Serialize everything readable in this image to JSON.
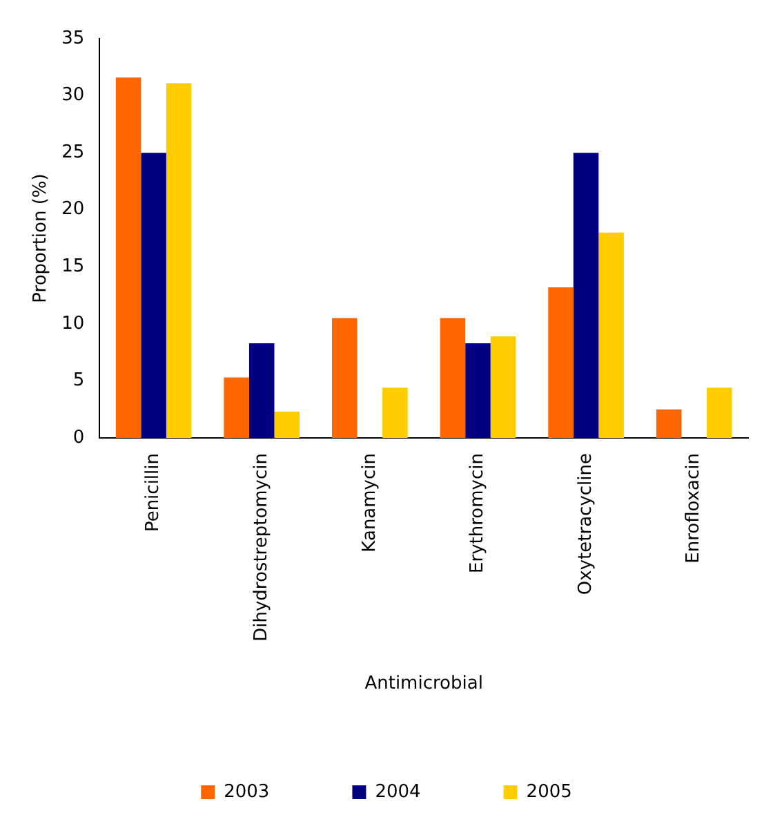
{
  "chart_data": {
    "type": "bar",
    "xlabel": "Antimicrobial",
    "ylabel": "Proportion (%)",
    "categories": [
      "Penicillin",
      "Dihydrostreptomycin",
      "Kanamycin",
      "Erythromycin",
      "Oxytetracycline",
      "Enrofloxacin"
    ],
    "series": [
      {
        "name": "2003",
        "color": "#ff6600",
        "values": [
          31.6,
          5.3,
          10.5,
          10.5,
          13.2,
          2.5
        ]
      },
      {
        "name": "2004",
        "color": "#000080",
        "values": [
          25,
          8.3,
          0,
          8.3,
          25,
          0
        ]
      },
      {
        "name": "2005",
        "color": "#ffcc00",
        "values": [
          31.1,
          2.3,
          4.4,
          8.9,
          18,
          4.4
        ]
      }
    ],
    "ylim": [
      0,
      35
    ],
    "yticks": [
      0,
      5,
      10,
      15,
      20,
      25,
      30,
      35
    ],
    "grid": false,
    "legend": "bottom"
  }
}
